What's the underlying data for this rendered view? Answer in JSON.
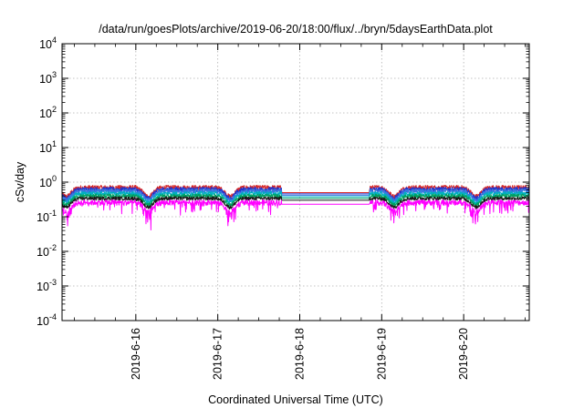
{
  "chart_data": {
    "type": "line",
    "title": "/data/run/goesPlots/archive/2019-06-20/18:00/flux/../bryn/5daysEarthData.plot",
    "xlabel": "Coordinated Universal Time (UTC)",
    "ylabel": "cSv/day",
    "y_scale": "log",
    "ylim": [
      0.0001,
      10000
    ],
    "xlim_days": [
      15.1,
      20.8
    ],
    "y_ticks": [
      {
        "value": 0.0001,
        "exp": "-4"
      },
      {
        "value": 0.001,
        "exp": "-3"
      },
      {
        "value": 0.01,
        "exp": "-2"
      },
      {
        "value": 0.1,
        "exp": "-1"
      },
      {
        "value": 1,
        "exp": "0"
      },
      {
        "value": 10,
        "exp": "1"
      },
      {
        "value": 100,
        "exp": "2"
      },
      {
        "value": 1000,
        "exp": "3"
      },
      {
        "value": 10000,
        "exp": "4"
      }
    ],
    "y_tick_base": "10",
    "x_ticks": [
      {
        "day": 16,
        "label": "2019-6-16"
      },
      {
        "day": 17,
        "label": "2019-6-17"
      },
      {
        "day": 18,
        "label": "2019-6-18"
      },
      {
        "day": 19,
        "label": "2019-6-19"
      },
      {
        "day": 20,
        "label": "2019-6-20"
      }
    ],
    "grid": true,
    "data_gap_days": [
      17.78,
      18.85
    ],
    "series": [
      {
        "color": "#d62728",
        "level": 0.7,
        "noise": 0.16,
        "spike_depth": 0.0,
        "gap_level": 0.5
      },
      {
        "color": "#2233cc",
        "level": 0.62,
        "noise": 0.16,
        "spike_depth": 0.0,
        "gap_level": 0.46
      },
      {
        "color": "#3a78e0",
        "level": 0.55,
        "noise": 0.15,
        "spike_depth": 0.0,
        "gap_level": 0.42
      },
      {
        "color": "#00b0c0",
        "level": 0.47,
        "noise": 0.14,
        "spike_depth": 0.0,
        "gap_level": 0.38
      },
      {
        "color": "#00a060",
        "level": 0.4,
        "noise": 0.13,
        "spike_depth": 0.0,
        "gap_level": 0.34
      },
      {
        "color": "#1a1a1a",
        "level": 0.34,
        "noise": 0.12,
        "spike_depth": 0.0,
        "gap_level": 0.3
      },
      {
        "color": "#ff00ff",
        "level": 0.26,
        "noise": 0.18,
        "spike_depth": 0.5,
        "gap_level": 0.23
      }
    ]
  }
}
